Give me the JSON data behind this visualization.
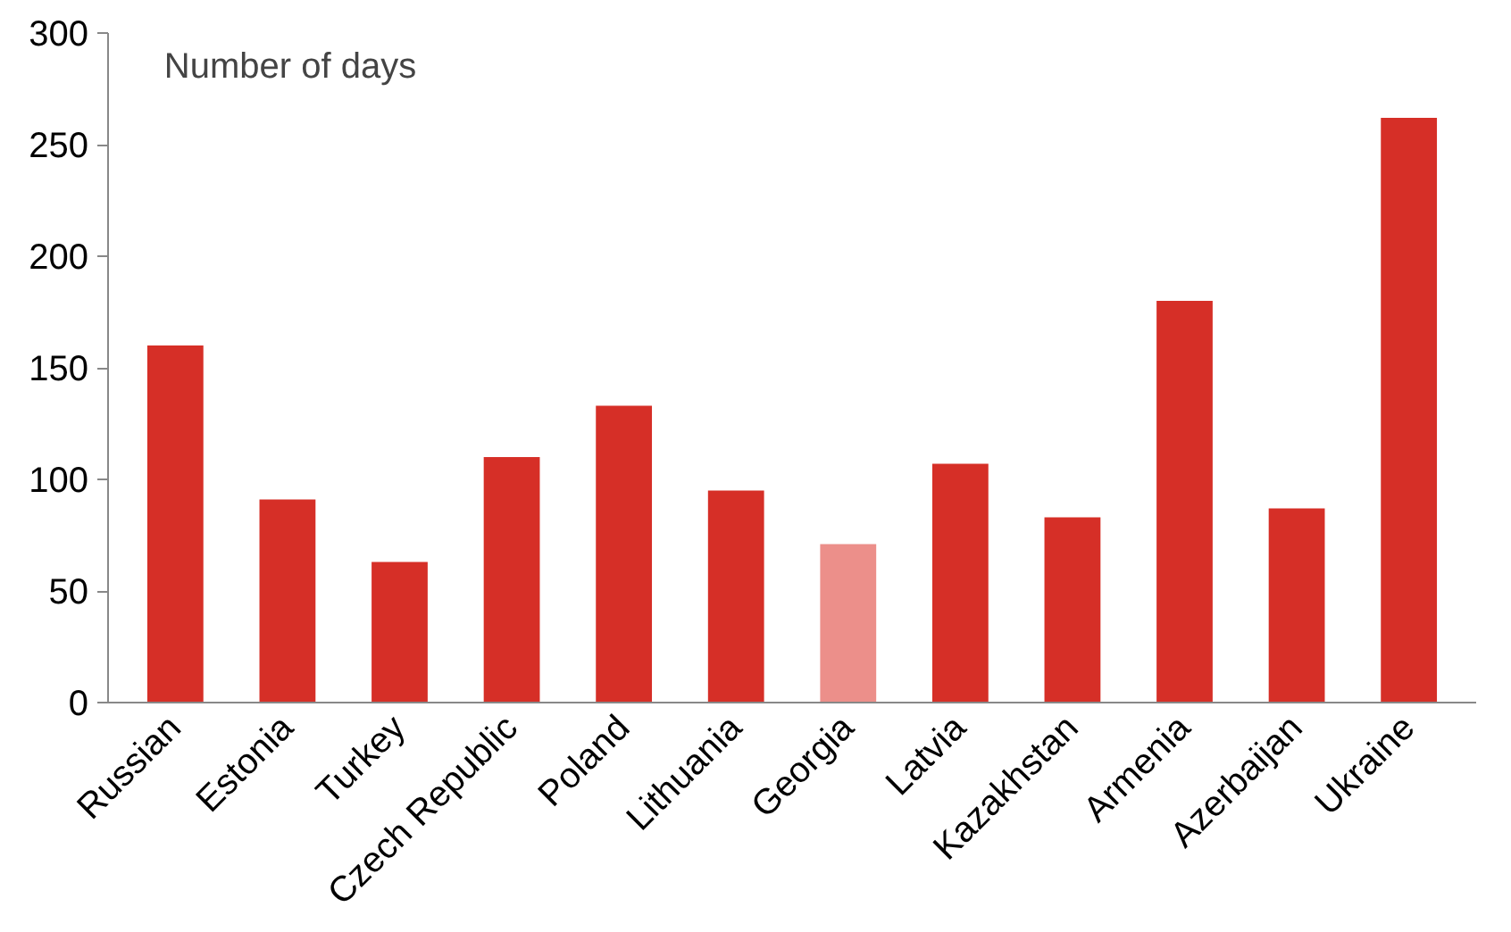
{
  "chart_data": {
    "type": "bar",
    "ylabel": "Number of days",
    "categories": [
      "Russian",
      "Estonia",
      "Turkey",
      "Czech Republic",
      "Poland",
      "Lithuania",
      "Georgia",
      "Latvia",
      "Kazakhstan",
      "Armenia",
      "Azerbaijan",
      "Ukraine"
    ],
    "values": [
      160,
      91,
      63,
      110,
      133,
      95,
      71,
      107,
      83,
      180,
      87,
      262
    ],
    "colors": [
      "#d62f27",
      "#d62f27",
      "#d62f27",
      "#d62f27",
      "#d62f27",
      "#d62f27",
      "#ec8f8a",
      "#d62f27",
      "#d62f27",
      "#d62f27",
      "#d62f27",
      "#d62f27"
    ],
    "ylim": [
      0,
      300
    ],
    "yticks": [
      0,
      50,
      100,
      150,
      200,
      250,
      300
    ],
    "grid": false
  }
}
